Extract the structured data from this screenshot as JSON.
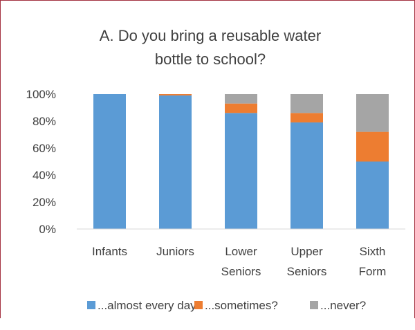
{
  "chart_data": {
    "type": "bar",
    "stacked": true,
    "title_lines": [
      "A. Do you bring a reusable water",
      "bottle to school?"
    ],
    "categories": [
      [
        "Infants"
      ],
      [
        "Juniors"
      ],
      [
        "Lower",
        "Seniors"
      ],
      [
        "Upper",
        "Seniors"
      ],
      [
        "Sixth",
        "Form"
      ]
    ],
    "series": [
      {
        "name": "...almost every day?",
        "color": "#5b9bd5",
        "values": [
          100,
          99,
          86,
          79,
          50
        ]
      },
      {
        "name": "...sometimes?",
        "color": "#ed7d31",
        "values": [
          0,
          1,
          7,
          7,
          22
        ]
      },
      {
        "name": "...never?",
        "color": "#a5a5a5",
        "values": [
          0,
          0,
          7,
          14,
          28
        ]
      }
    ],
    "ylim": [
      0,
      100
    ],
    "yticks": [
      "0%",
      "20%",
      "40%",
      "60%",
      "80%",
      "100%"
    ],
    "grid": false,
    "legend_position": "bottom",
    "frame_color": "#a3303f"
  }
}
